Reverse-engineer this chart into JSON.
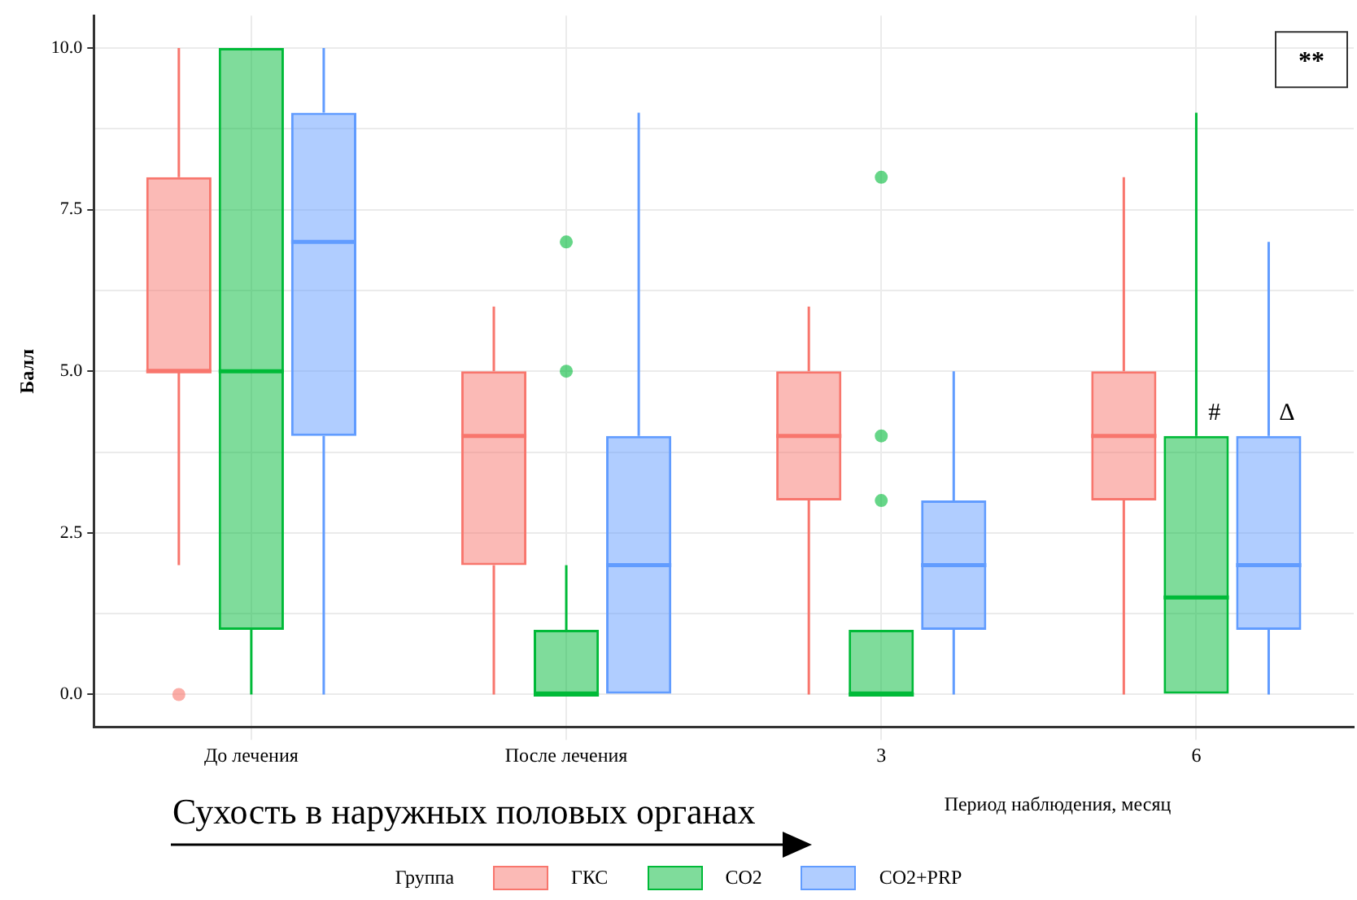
{
  "chart_data": {
    "type": "box",
    "title": "Сухость в наружных половых органах",
    "xlabel": "Период наблюдения, месяц",
    "ylabel": "Балл",
    "legend_title": "Группа",
    "legend": "bottom",
    "grid": true,
    "categories": [
      "До лечения",
      "После лечения",
      "3",
      "6"
    ],
    "ylim": [
      -0.5,
      10.5
    ],
    "yticks": [
      {
        "value": 0,
        "label": "0.0"
      },
      {
        "value": 1.25,
        "label": null
      },
      {
        "value": 2.5,
        "label": "2.5"
      },
      {
        "value": 3.75,
        "label": null
      },
      {
        "value": 5,
        "label": "5.0"
      },
      {
        "value": 6.25,
        "label": null
      },
      {
        "value": 7.5,
        "label": "7.5"
      },
      {
        "value": 8.75,
        "label": null
      },
      {
        "value": 10,
        "label": "10.0"
      }
    ],
    "series": [
      {
        "name": "ГКС",
        "color": "#f8766d",
        "boxes": [
          {
            "low": 2,
            "q1": 5,
            "median": 5,
            "q3": 8,
            "high": 10,
            "outliers": [
              0
            ]
          },
          {
            "low": 0,
            "q1": 2,
            "median": 4,
            "q3": 5,
            "high": 6
          },
          {
            "low": 0,
            "q1": 3,
            "median": 4,
            "q3": 5,
            "high": 6
          },
          {
            "low": 0,
            "q1": 3,
            "median": 4,
            "q3": 5,
            "high": 8
          }
        ]
      },
      {
        "name": "CO2",
        "color": "#00ba38",
        "boxes": [
          {
            "low": 0,
            "q1": 1,
            "median": 5,
            "q3": 10,
            "high": 10
          },
          {
            "low": 0,
            "q1": 0,
            "median": 0,
            "q3": 1,
            "high": 2,
            "outliers": [
              5,
              7
            ]
          },
          {
            "low": 0,
            "q1": 0,
            "median": 0,
            "q3": 1,
            "high": 1,
            "outliers": [
              3,
              4,
              8
            ]
          },
          {
            "low": 0,
            "q1": 0,
            "median": 1.5,
            "q3": 4,
            "high": 9
          }
        ]
      },
      {
        "name": "CO2+PRP",
        "color": "#619cff",
        "boxes": [
          {
            "low": 0,
            "q1": 4,
            "median": 7,
            "q3": 9,
            "high": 10
          },
          {
            "low": 0,
            "q1": 0,
            "median": 2,
            "q3": 4,
            "high": 9
          },
          {
            "low": 0,
            "q1": 1,
            "median": 2,
            "q3": 3,
            "high": 5
          },
          {
            "low": 0,
            "q1": 1,
            "median": 2,
            "q3": 4,
            "high": 7
          }
        ]
      }
    ],
    "annotations": [
      "**",
      "#",
      "Δ"
    ]
  }
}
